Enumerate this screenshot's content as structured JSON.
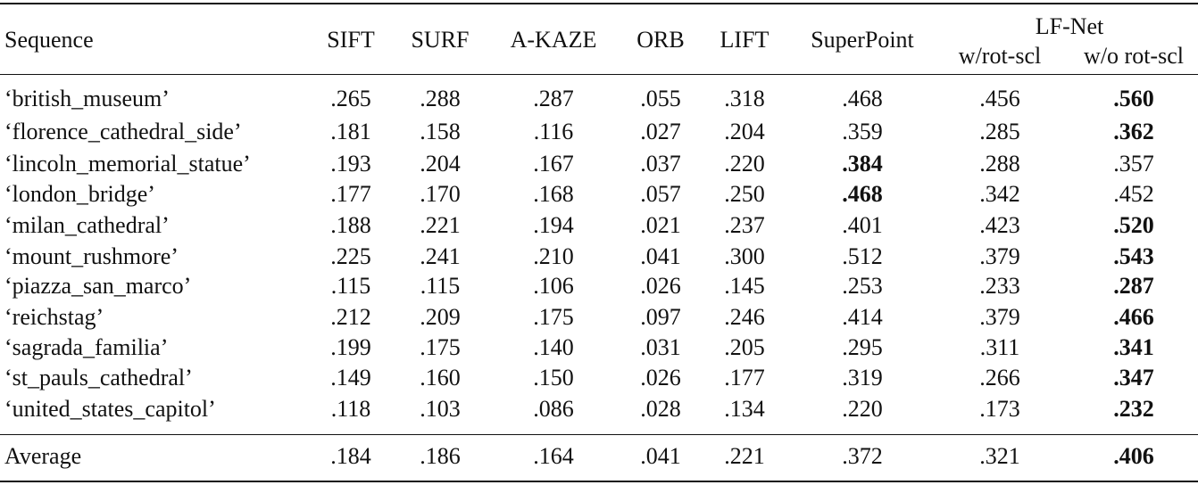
{
  "table": {
    "header": {
      "sequence": "Sequence",
      "columns": [
        "SIFT",
        "SURF",
        "A-KAZE",
        "ORB",
        "LIFT",
        "SuperPoint"
      ],
      "group": "LF-Net",
      "subcolumns": [
        "w/rot-scl",
        "w/o rot-scl"
      ]
    },
    "rows": [
      {
        "sequence": "‘british_museum’",
        "values": [
          ".265",
          ".288",
          ".287",
          ".055",
          ".318",
          ".468",
          ".456",
          ".560"
        ],
        "best": 7
      },
      {
        "sequence": "‘florence_cathedral_side’",
        "values": [
          ".181",
          ".158",
          ".116",
          ".027",
          ".204",
          ".359",
          ".285",
          ".362"
        ],
        "best": 7
      },
      {
        "sequence": "‘lincoln_memorial_statue’",
        "values": [
          ".193",
          ".204",
          ".167",
          ".037",
          ".220",
          ".384",
          ".288",
          ".357"
        ],
        "best": 5
      },
      {
        "sequence": "‘london_bridge’",
        "values": [
          ".177",
          ".170",
          ".168",
          ".057",
          ".250",
          ".468",
          ".342",
          ".452"
        ],
        "best": 5
      },
      {
        "sequence": "‘milan_cathedral’",
        "values": [
          ".188",
          ".221",
          ".194",
          ".021",
          ".237",
          ".401",
          ".423",
          ".520"
        ],
        "best": 7
      },
      {
        "sequence": "‘mount_rushmore’",
        "values": [
          ".225",
          ".241",
          ".210",
          ".041",
          ".300",
          ".512",
          ".379",
          ".543"
        ],
        "best": 7
      },
      {
        "sequence": "‘piazza_san_marco’",
        "values": [
          ".115",
          ".115",
          ".106",
          ".026",
          ".145",
          ".253",
          ".233",
          ".287"
        ],
        "best": 7
      },
      {
        "sequence": "‘reichstag’",
        "values": [
          ".212",
          ".209",
          ".175",
          ".097",
          ".246",
          ".414",
          ".379",
          ".466"
        ],
        "best": 7
      },
      {
        "sequence": "‘sagrada_familia’",
        "values": [
          ".199",
          ".175",
          ".140",
          ".031",
          ".205",
          ".295",
          ".311",
          ".341"
        ],
        "best": 7
      },
      {
        "sequence": "‘st_pauls_cathedral’",
        "values": [
          ".149",
          ".160",
          ".150",
          ".026",
          ".177",
          ".319",
          ".266",
          ".347"
        ],
        "best": 7
      },
      {
        "sequence": "‘united_states_capitol’",
        "values": [
          ".118",
          ".103",
          ".086",
          ".028",
          ".134",
          ".220",
          ".173",
          ".232"
        ],
        "best": 7
      }
    ],
    "average": {
      "sequence": "Average",
      "values": [
        ".184",
        ".186",
        ".164",
        ".041",
        ".221",
        ".372",
        ".321",
        ".406"
      ],
      "best": 7
    }
  }
}
